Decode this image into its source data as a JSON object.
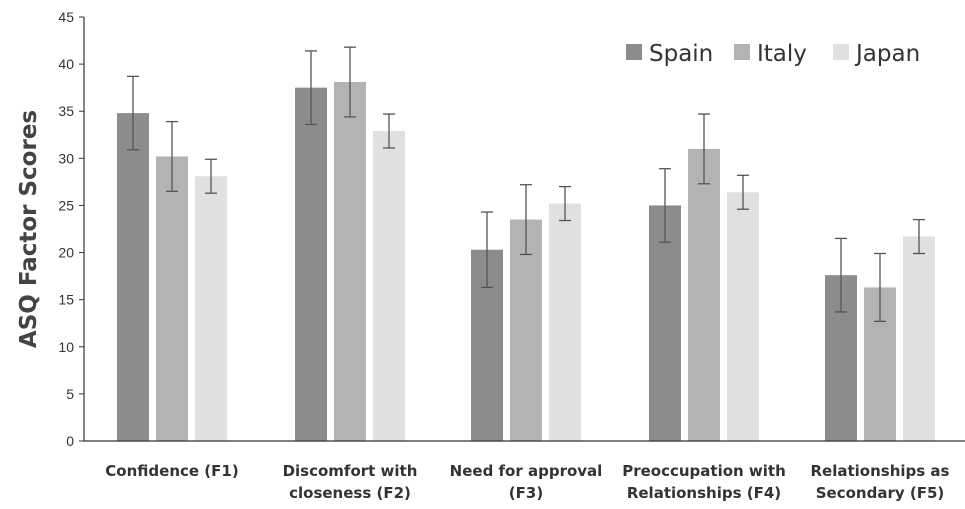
{
  "chart_data": {
    "type": "bar",
    "title": "",
    "xlabel": "",
    "ylabel": "ASQ Factor Scores",
    "ylim": [
      0,
      45
    ],
    "yticks": [
      0,
      5,
      10,
      15,
      20,
      25,
      30,
      35,
      40,
      45
    ],
    "categories": [
      [
        "Confidence (F1)",
        ""
      ],
      [
        "Discomfort with",
        "closeness (F2)"
      ],
      [
        "Need for approval",
        "(F3)"
      ],
      [
        "Preoccupation with",
        "Relationships (F4)"
      ],
      [
        "Relationships as",
        "Secondary (F5)"
      ]
    ],
    "series": [
      {
        "name": "Spain",
        "color": "#8c8c8c",
        "values": [
          34.8,
          37.5,
          20.3,
          25.0,
          17.6
        ],
        "errors": [
          3.9,
          3.9,
          4.0,
          3.9,
          3.9
        ]
      },
      {
        "name": "Italy",
        "color": "#b3b3b3",
        "values": [
          30.2,
          38.1,
          23.5,
          31.0,
          16.3
        ],
        "errors": [
          3.7,
          3.7,
          3.7,
          3.7,
          3.6
        ]
      },
      {
        "name": "Japan",
        "color": "#e0e0e0",
        "values": [
          28.1,
          32.9,
          25.2,
          26.4,
          21.7
        ],
        "errors": [
          1.8,
          1.8,
          1.8,
          1.8,
          1.8
        ]
      }
    ],
    "grid": false,
    "legend_position": "top-right"
  }
}
